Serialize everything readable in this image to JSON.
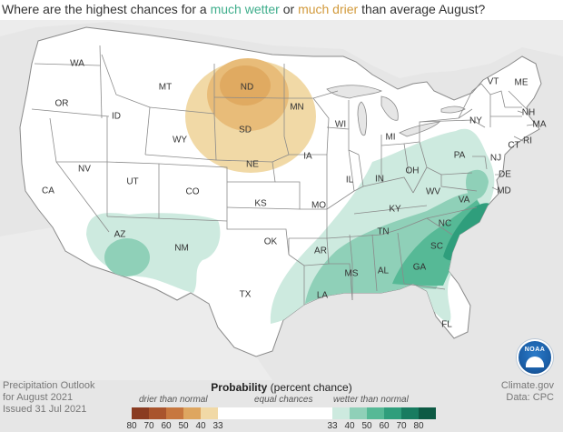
{
  "title": {
    "prefix": "Where are the highest chances for a ",
    "wet": "much wetter",
    "middle": " or ",
    "dry": "much drier",
    "suffix": " than average August?"
  },
  "colors": {
    "land": "#ffffff",
    "background": "#e6e6e6",
    "wet_33_40": "#cdeadf",
    "wet_40_50": "#8fd0b8",
    "wet_50_60": "#56b996",
    "wet_60_70": "#2f9e7c",
    "dry_33_40": "#f1d9a6",
    "dry_40_50": "#e8bc79",
    "dry_50_60": "#d89a4e"
  },
  "states": [
    {
      "abbr": "WA"
    },
    {
      "abbr": "OR"
    },
    {
      "abbr": "CA"
    },
    {
      "abbr": "NV"
    },
    {
      "abbr": "ID"
    },
    {
      "abbr": "MT"
    },
    {
      "abbr": "WY"
    },
    {
      "abbr": "UT"
    },
    {
      "abbr": "AZ"
    },
    {
      "abbr": "CO"
    },
    {
      "abbr": "NM"
    },
    {
      "abbr": "ND"
    },
    {
      "abbr": "SD"
    },
    {
      "abbr": "NE"
    },
    {
      "abbr": "KS"
    },
    {
      "abbr": "OK"
    },
    {
      "abbr": "TX"
    },
    {
      "abbr": "MN"
    },
    {
      "abbr": "IA"
    },
    {
      "abbr": "MO"
    },
    {
      "abbr": "AR"
    },
    {
      "abbr": "LA"
    },
    {
      "abbr": "WI"
    },
    {
      "abbr": "IL"
    },
    {
      "abbr": "MS"
    },
    {
      "abbr": "MI"
    },
    {
      "abbr": "IN"
    },
    {
      "abbr": "KY"
    },
    {
      "abbr": "TN"
    },
    {
      "abbr": "AL"
    },
    {
      "abbr": "OH"
    },
    {
      "abbr": "GA"
    },
    {
      "abbr": "FL"
    },
    {
      "abbr": "SC"
    },
    {
      "abbr": "NC"
    },
    {
      "abbr": "WV"
    },
    {
      "abbr": "VA"
    },
    {
      "abbr": "PA"
    },
    {
      "abbr": "NY"
    },
    {
      "abbr": "MD"
    },
    {
      "abbr": "DE"
    },
    {
      "abbr": "NJ"
    },
    {
      "abbr": "CT"
    },
    {
      "abbr": "RI"
    },
    {
      "abbr": "MA"
    },
    {
      "abbr": "VT"
    },
    {
      "abbr": "NH"
    },
    {
      "abbr": "ME"
    }
  ],
  "footer_left": {
    "line1": "Precipitation Outlook",
    "line2": "for August 2021",
    "line3": "Issued 31 Jul 2021"
  },
  "footer_right": {
    "line1": "Climate.gov",
    "line2": "Data: CPC"
  },
  "logo": {
    "text": "NOAA",
    "icon": "noaa-logo-icon"
  },
  "legend": {
    "title_bold": "Probability",
    "title_rest": " (percent chance)",
    "drier": "drier than normal",
    "equal": "equal chances",
    "wetter": "wetter than normal",
    "dry_swatches": [
      "#8a3b21",
      "#a9542d",
      "#c7773f",
      "#dea660",
      "#f1d9a6"
    ],
    "wet_swatches": [
      "#cdeadf",
      "#8fd0b8",
      "#56b996",
      "#2f9e7c",
      "#187c60",
      "#0d5a44"
    ],
    "dry_ticks": [
      "80",
      "70",
      "60",
      "50",
      "40",
      "33"
    ],
    "wet_ticks": [
      "33",
      "40",
      "50",
      "60",
      "70",
      "80"
    ]
  }
}
